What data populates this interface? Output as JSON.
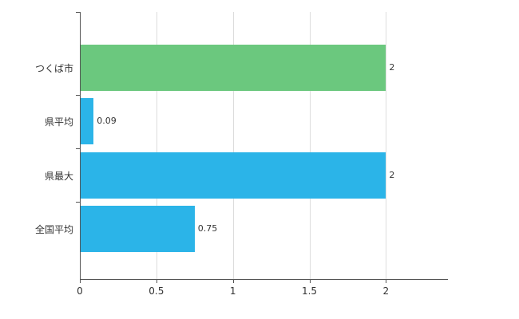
{
  "chart_data": {
    "type": "bar",
    "orientation": "horizontal",
    "title": "",
    "categories": [
      "つくば市",
      "県平均",
      "県最大",
      "全国平均"
    ],
    "values": [
      2,
      0.09,
      2,
      0.75
    ],
    "value_labels": [
      "2",
      "0.09",
      "2",
      "0.75"
    ],
    "bar_colors": [
      "#6bc87e",
      "#2bb4e8",
      "#2bb4e8",
      "#2bb4e8"
    ],
    "xlim": [
      0,
      2.4
    ],
    "xticks": [
      0,
      0.5,
      1,
      1.5,
      2
    ],
    "xtick_labels": [
      "0",
      "0.5",
      "1",
      "1.5",
      "2"
    ],
    "grid": true,
    "legend": "none",
    "axis_color": "#555555",
    "grid_color": "#dddddd",
    "label_color": "#333333"
  }
}
